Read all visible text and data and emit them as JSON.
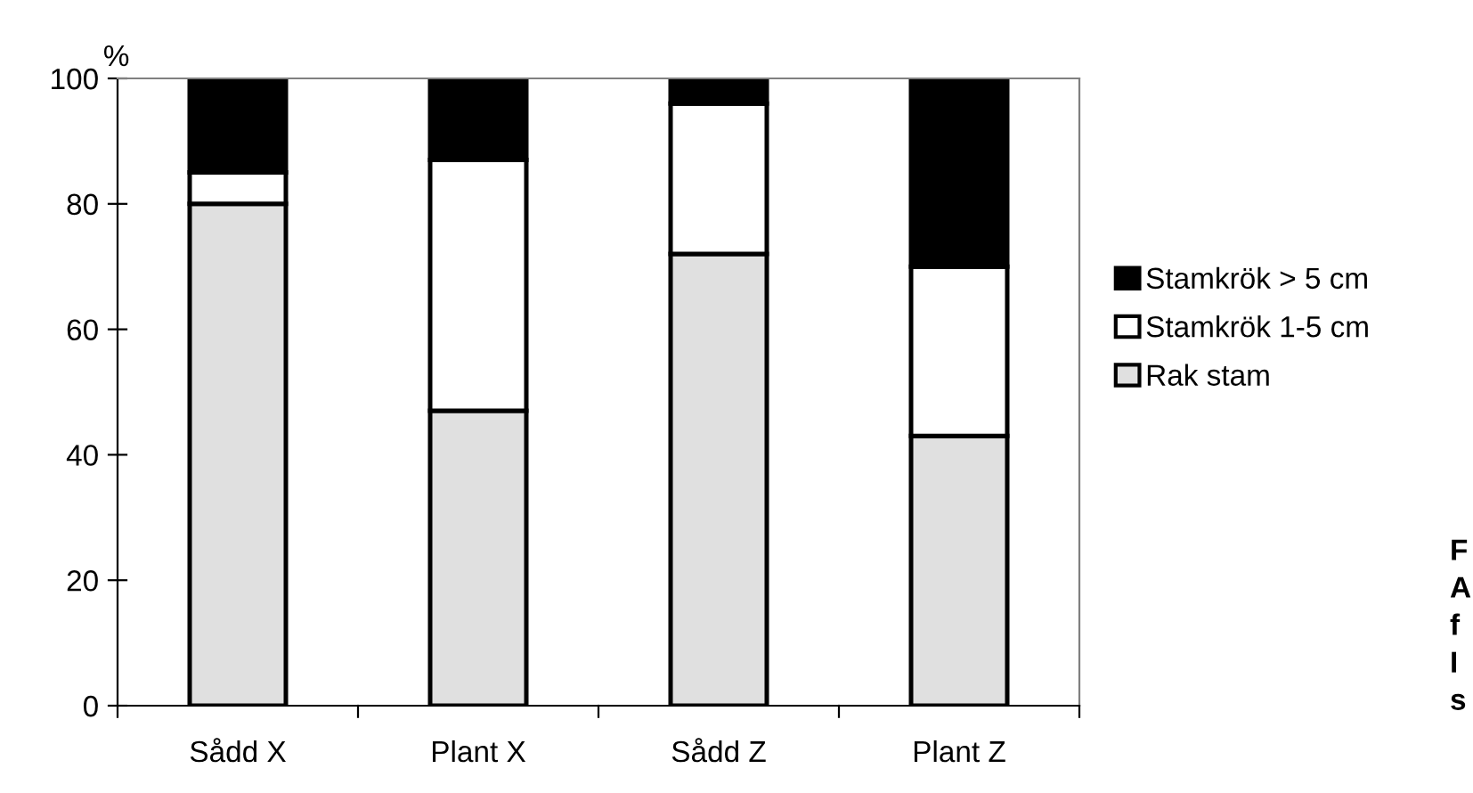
{
  "chart_data": {
    "type": "bar",
    "stacked": true,
    "ylabel": "%",
    "categories": [
      "Sådd X",
      "Plant X",
      "Sådd Z",
      "Plant Z"
    ],
    "series": [
      {
        "name": "Rak stam",
        "color": "#e0e0e0",
        "values": [
          80,
          47,
          72,
          43
        ]
      },
      {
        "name": "Stamkrök 1-5 cm",
        "color": "#ffffff",
        "values": [
          5,
          40,
          24,
          27
        ]
      },
      {
        "name": "Stamkrök > 5 cm",
        "color": "#000000",
        "values": [
          15,
          13,
          4,
          30
        ]
      }
    ],
    "ylim": [
      0,
      100
    ],
    "yticks": [
      0,
      20,
      40,
      60,
      80,
      100
    ],
    "grid": false,
    "legend": "right",
    "annotations": [
      "F",
      "A",
      "f",
      "I",
      "s"
    ]
  }
}
